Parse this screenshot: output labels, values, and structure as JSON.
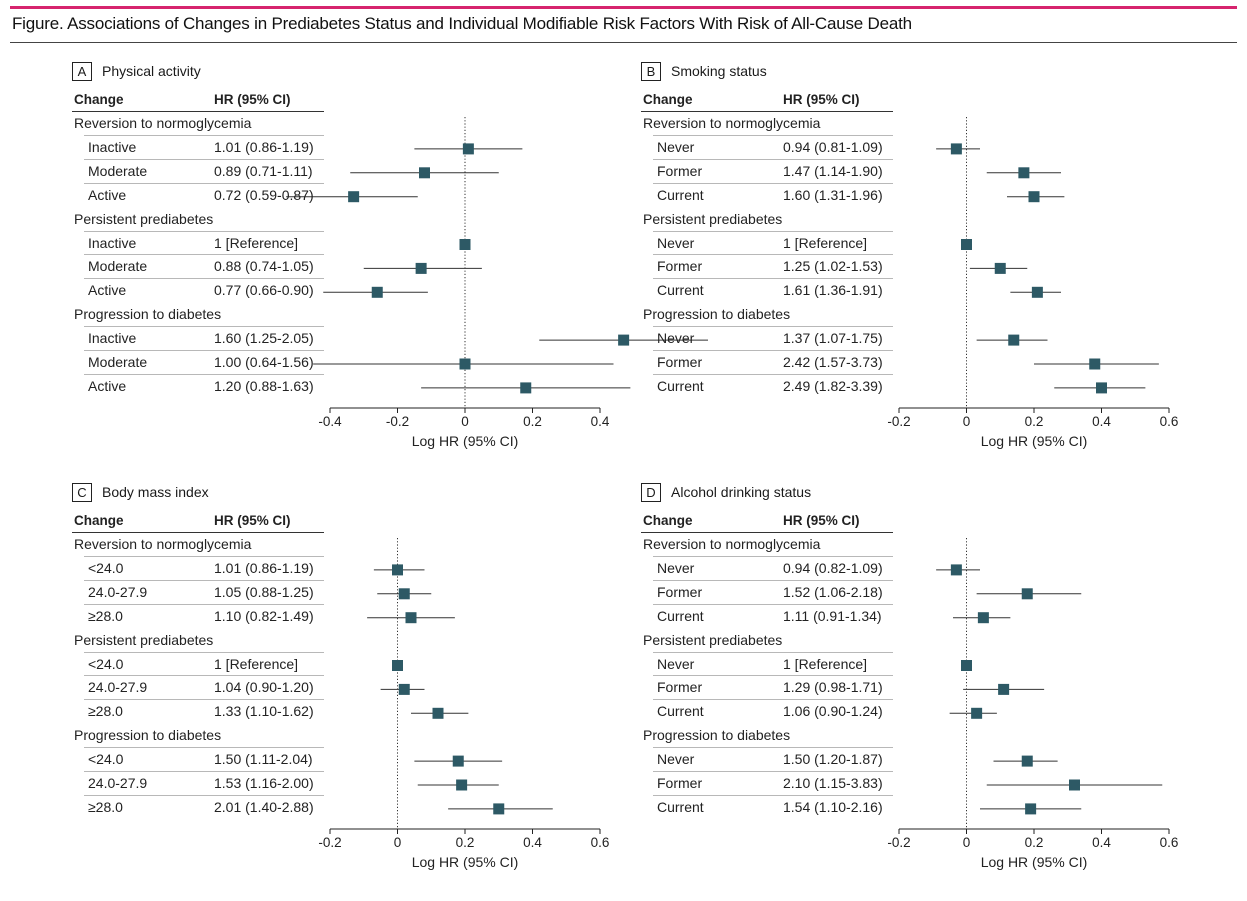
{
  "figure": {
    "title": "Figure. Associations of Changes in Prediabetes Status and Individual Modifiable Risk Factors With Risk of All-Cause Death",
    "col_change": "Change",
    "col_hr": "HR (95% CI)",
    "xlabel": "Log HR (95% CI)",
    "colors": {
      "accent": "#d6246e",
      "marker": "#2d5965"
    }
  },
  "chart_data": [
    {
      "type": "forest",
      "panel": "A",
      "title": "Physical activity",
      "xlabel": "Log HR (95% CI)",
      "xlim": [
        -0.4,
        0.4
      ],
      "xticks": [
        "-0.4",
        "-0.2",
        "0",
        "0.2",
        "0.4"
      ],
      "tickvals": [
        -0.4,
        -0.2,
        0,
        0.2,
        0.4
      ],
      "groups": [
        {
          "name": "Reversion to normoglycemia",
          "rows": [
            {
              "label": "Inactive",
              "hr_text": "1.01 (0.86-1.19)",
              "est": 0.01,
              "lo": -0.15,
              "hi": 0.17
            },
            {
              "label": "Moderate",
              "hr_text": "0.89 (0.71-1.11)",
              "est": -0.12,
              "lo": -0.34,
              "hi": 0.1
            },
            {
              "label": "Active",
              "hr_text": "0.72 (0.59-0.87)",
              "est": -0.33,
              "lo": -0.53,
              "hi": -0.14
            }
          ]
        },
        {
          "name": "Persistent prediabetes",
          "rows": [
            {
              "label": "Inactive",
              "hr_text": "1 [Reference]",
              "est": 0,
              "lo": 0,
              "hi": 0
            },
            {
              "label": "Moderate",
              "hr_text": "0.88 (0.74-1.05)",
              "est": -0.13,
              "lo": -0.3,
              "hi": 0.05
            },
            {
              "label": "Active",
              "hr_text": "0.77 (0.66-0.90)",
              "est": -0.26,
              "lo": -0.42,
              "hi": -0.11
            }
          ]
        },
        {
          "name": "Progression to diabetes",
          "rows": [
            {
              "label": "Inactive",
              "hr_text": "1.60 (1.25-2.05)",
              "est": 0.47,
              "lo": 0.22,
              "hi": 0.72
            },
            {
              "label": "Moderate",
              "hr_text": "1.00 (0.64-1.56)",
              "est": 0.0,
              "lo": -0.45,
              "hi": 0.44
            },
            {
              "label": "Active",
              "hr_text": "1.20 (0.88-1.63)",
              "est": 0.18,
              "lo": -0.13,
              "hi": 0.49
            }
          ]
        }
      ]
    },
    {
      "type": "forest",
      "panel": "B",
      "title": "Smoking status",
      "xlabel": "Log HR (95% CI)",
      "xlim": [
        -0.2,
        0.6
      ],
      "xticks": [
        "-0.2",
        "0",
        "0.2",
        "0.4",
        "0.6"
      ],
      "tickvals": [
        -0.2,
        0,
        0.2,
        0.4,
        0.6
      ],
      "groups": [
        {
          "name": "Reversion to normoglycemia",
          "rows": [
            {
              "label": "Never",
              "hr_text": "0.94 (0.81-1.09)",
              "est": -0.03,
              "lo": -0.09,
              "hi": 0.04
            },
            {
              "label": "Former",
              "hr_text": "1.47 (1.14-1.90)",
              "est": 0.17,
              "lo": 0.06,
              "hi": 0.28
            },
            {
              "label": "Current",
              "hr_text": "1.60 (1.31-1.96)",
              "est": 0.2,
              "lo": 0.12,
              "hi": 0.29
            }
          ]
        },
        {
          "name": "Persistent prediabetes",
          "rows": [
            {
              "label": "Never",
              "hr_text": "1 [Reference]",
              "est": 0,
              "lo": 0,
              "hi": 0
            },
            {
              "label": "Former",
              "hr_text": "1.25 (1.02-1.53)",
              "est": 0.1,
              "lo": 0.01,
              "hi": 0.18
            },
            {
              "label": "Current",
              "hr_text": "1.61 (1.36-1.91)",
              "est": 0.21,
              "lo": 0.13,
              "hi": 0.28
            }
          ]
        },
        {
          "name": "Progression to diabetes",
          "rows": [
            {
              "label": "Never",
              "hr_text": "1.37 (1.07-1.75)",
              "est": 0.14,
              "lo": 0.03,
              "hi": 0.24
            },
            {
              "label": "Former",
              "hr_text": "2.42 (1.57-3.73)",
              "est": 0.38,
              "lo": 0.2,
              "hi": 0.57
            },
            {
              "label": "Current",
              "hr_text": "2.49 (1.82-3.39)",
              "est": 0.4,
              "lo": 0.26,
              "hi": 0.53
            }
          ]
        }
      ]
    },
    {
      "type": "forest",
      "panel": "C",
      "title": "Body mass index",
      "xlabel": "Log HR (95% CI)",
      "xlim": [
        -0.2,
        0.6
      ],
      "xticks": [
        "-0.2",
        "0",
        "0.2",
        "0.4",
        "0.6"
      ],
      "tickvals": [
        -0.2,
        0,
        0.2,
        0.4,
        0.6
      ],
      "groups": [
        {
          "name": "Reversion to normoglycemia",
          "rows": [
            {
              "label": "<24.0",
              "hr_text": "1.01 (0.86-1.19)",
              "est": 0.0,
              "lo": -0.07,
              "hi": 0.08
            },
            {
              "label": "24.0-27.9",
              "hr_text": "1.05 (0.88-1.25)",
              "est": 0.02,
              "lo": -0.06,
              "hi": 0.1
            },
            {
              "label": "≥28.0",
              "hr_text": "1.10 (0.82-1.49)",
              "est": 0.04,
              "lo": -0.09,
              "hi": 0.17
            }
          ]
        },
        {
          "name": "Persistent prediabetes",
          "rows": [
            {
              "label": "<24.0",
              "hr_text": "1 [Reference]",
              "est": 0,
              "lo": 0,
              "hi": 0
            },
            {
              "label": "24.0-27.9",
              "hr_text": "1.04 (0.90-1.20)",
              "est": 0.02,
              "lo": -0.05,
              "hi": 0.08
            },
            {
              "label": "≥28.0",
              "hr_text": "1.33 (1.10-1.62)",
              "est": 0.12,
              "lo": 0.04,
              "hi": 0.21
            }
          ]
        },
        {
          "name": "Progression to diabetes",
          "rows": [
            {
              "label": "<24.0",
              "hr_text": "1.50 (1.11-2.04)",
              "est": 0.18,
              "lo": 0.05,
              "hi": 0.31
            },
            {
              "label": "24.0-27.9",
              "hr_text": "1.53 (1.16-2.00)",
              "est": 0.19,
              "lo": 0.06,
              "hi": 0.3
            },
            {
              "label": "≥28.0",
              "hr_text": "2.01 (1.40-2.88)",
              "est": 0.3,
              "lo": 0.15,
              "hi": 0.46
            }
          ]
        }
      ]
    },
    {
      "type": "forest",
      "panel": "D",
      "title": "Alcohol drinking status",
      "xlabel": "Log HR (95% CI)",
      "xlim": [
        -0.2,
        0.6
      ],
      "xticks": [
        "-0.2",
        "0",
        "0.2",
        "0.4",
        "0.6"
      ],
      "tickvals": [
        -0.2,
        0,
        0.2,
        0.4,
        0.6
      ],
      "groups": [
        {
          "name": "Reversion to normoglycemia",
          "rows": [
            {
              "label": "Never",
              "hr_text": "0.94 (0.82-1.09)",
              "est": -0.03,
              "lo": -0.09,
              "hi": 0.04
            },
            {
              "label": "Former",
              "hr_text": "1.52 (1.06-2.18)",
              "est": 0.18,
              "lo": 0.03,
              "hi": 0.34
            },
            {
              "label": "Current",
              "hr_text": "1.11 (0.91-1.34)",
              "est": 0.05,
              "lo": -0.04,
              "hi": 0.13
            }
          ]
        },
        {
          "name": "Persistent prediabetes",
          "rows": [
            {
              "label": "Never",
              "hr_text": "1 [Reference]",
              "est": 0,
              "lo": 0,
              "hi": 0
            },
            {
              "label": "Former",
              "hr_text": "1.29 (0.98-1.71)",
              "est": 0.11,
              "lo": -0.01,
              "hi": 0.23
            },
            {
              "label": "Current",
              "hr_text": "1.06 (0.90-1.24)",
              "est": 0.03,
              "lo": -0.05,
              "hi": 0.09
            }
          ]
        },
        {
          "name": "Progression to diabetes",
          "rows": [
            {
              "label": "Never",
              "hr_text": "1.50 (1.20-1.87)",
              "est": 0.18,
              "lo": 0.08,
              "hi": 0.27
            },
            {
              "label": "Former",
              "hr_text": "2.10 (1.15-3.83)",
              "est": 0.32,
              "lo": 0.06,
              "hi": 0.58
            },
            {
              "label": "Current",
              "hr_text": "1.54 (1.10-2.16)",
              "est": 0.19,
              "lo": 0.04,
              "hi": 0.34
            }
          ]
        }
      ]
    }
  ]
}
